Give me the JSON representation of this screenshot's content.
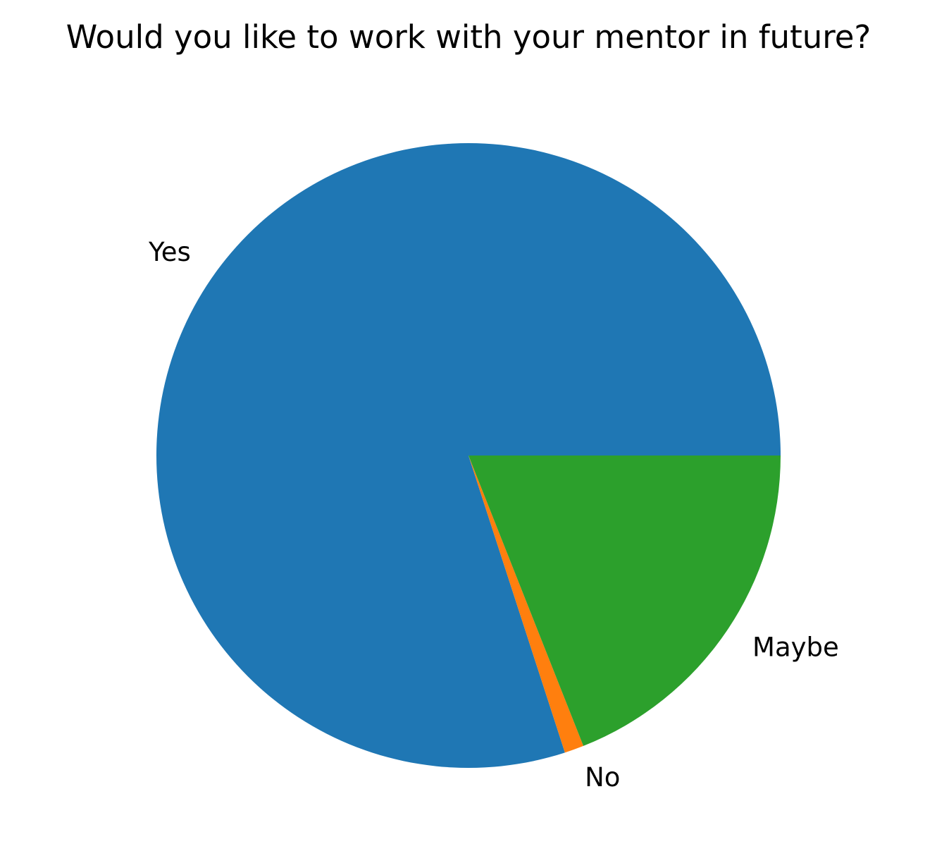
{
  "chart_data": {
    "type": "pie",
    "title": "Would you like to work with your mentor in future?",
    "start_angle_deg": 0,
    "direction": "counterclockwise",
    "slices": [
      {
        "label": "Yes",
        "value": 80,
        "color": "#1f77b4"
      },
      {
        "label": "No",
        "value": 1,
        "color": "#ff7f0e"
      },
      {
        "label": "Maybe",
        "value": 19,
        "color": "#2ca02c"
      }
    ]
  }
}
